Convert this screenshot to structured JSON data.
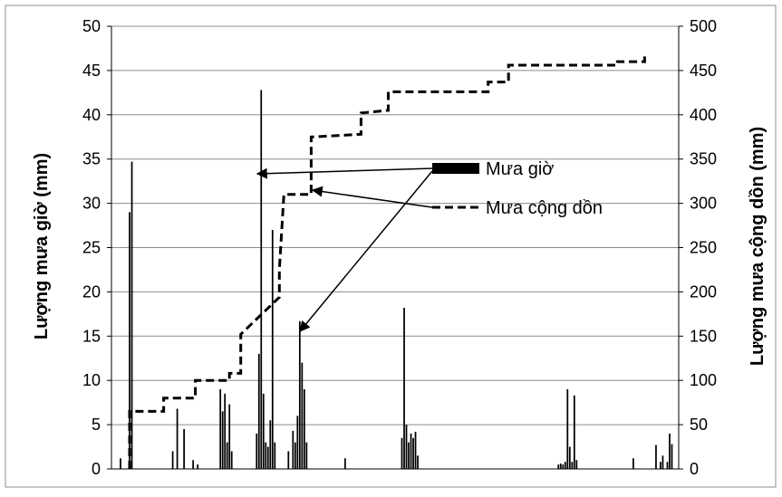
{
  "chart_data": {
    "type": "bar+line",
    "title": "",
    "ylabel_left": "Lượng mưa giờ (mm)",
    "ylabel_right": "Lượng mưa cộng dồn (mm)",
    "ylim_left": [
      0,
      50
    ],
    "ylim_right": [
      0,
      500
    ],
    "yticks_left": [
      "0",
      "5",
      "10",
      "15",
      "20",
      "25",
      "30",
      "35",
      "40",
      "45",
      "50"
    ],
    "yticks_right": [
      "0",
      "50",
      "100",
      "150",
      "200",
      "250",
      "300",
      "350",
      "400",
      "450",
      "500"
    ],
    "grid": true,
    "x_hours": 250,
    "legend": [
      {
        "name": "Mưa giờ",
        "style": "bar"
      },
      {
        "name": "Mưa cộng dồn",
        "style": "dashed-line"
      }
    ],
    "series": [
      {
        "name": "Mưa giờ",
        "axis": "left",
        "points": [
          [
            4,
            1.2
          ],
          [
            8,
            29
          ],
          [
            9,
            34.7
          ],
          [
            27,
            2.0
          ],
          [
            29,
            6.8
          ],
          [
            32,
            4.5
          ],
          [
            36,
            1.0
          ],
          [
            38,
            0.5
          ],
          [
            48,
            9.0
          ],
          [
            49,
            6.5
          ],
          [
            50,
            8.5
          ],
          [
            51,
            3.0
          ],
          [
            52,
            7.3
          ],
          [
            53,
            2.0
          ],
          [
            64,
            4.0
          ],
          [
            65,
            13.0
          ],
          [
            66,
            42.8
          ],
          [
            67,
            8.5
          ],
          [
            68,
            3.0
          ],
          [
            69,
            2.5
          ],
          [
            70,
            5.5
          ],
          [
            71,
            27.0
          ],
          [
            72,
            3.0
          ],
          [
            78,
            2.0
          ],
          [
            80,
            4.3
          ],
          [
            81,
            3.0
          ],
          [
            82,
            6.0
          ],
          [
            83,
            16.7
          ],
          [
            84,
            12.0
          ],
          [
            85,
            9.0
          ],
          [
            86,
            3.0
          ],
          [
            103,
            1.2
          ],
          [
            128,
            3.5
          ],
          [
            129,
            18.2
          ],
          [
            130,
            5.0
          ],
          [
            131,
            3.0
          ],
          [
            132,
            4.0
          ],
          [
            133,
            3.5
          ],
          [
            134,
            4.2
          ],
          [
            135,
            1.5
          ],
          [
            197,
            0.5
          ],
          [
            198,
            0.6
          ],
          [
            199,
            0.5
          ],
          [
            200,
            0.8
          ],
          [
            201,
            9.0
          ],
          [
            202,
            2.5
          ],
          [
            203,
            0.8
          ],
          [
            204,
            8.3
          ],
          [
            205,
            1.0
          ],
          [
            230,
            1.2
          ],
          [
            240,
            2.7
          ],
          [
            242,
            0.8
          ],
          [
            243,
            1.5
          ],
          [
            245,
            0.8
          ],
          [
            246,
            4.0
          ],
          [
            247,
            2.8
          ]
        ]
      },
      {
        "name": "Mưa cộng dồn",
        "axis": "right",
        "style": "dashed",
        "points": [
          [
            8,
            0
          ],
          [
            8,
            65
          ],
          [
            23,
            65
          ],
          [
            23,
            80
          ],
          [
            37,
            80
          ],
          [
            37,
            100
          ],
          [
            52,
            100
          ],
          [
            52,
            108
          ],
          [
            57,
            108
          ],
          [
            57,
            152
          ],
          [
            74,
            194
          ],
          [
            74,
            225
          ],
          [
            76,
            310
          ],
          [
            88,
            310
          ],
          [
            88,
            375
          ],
          [
            110,
            378
          ],
          [
            110,
            402
          ],
          [
            122,
            405
          ],
          [
            122,
            426
          ],
          [
            154,
            426
          ],
          [
            166,
            426
          ],
          [
            166,
            437
          ],
          [
            175,
            437
          ],
          [
            175,
            456
          ],
          [
            208,
            456
          ],
          [
            223,
            456
          ],
          [
            223,
            460
          ],
          [
            235,
            460
          ],
          [
            235,
            470
          ]
        ]
      }
    ]
  }
}
